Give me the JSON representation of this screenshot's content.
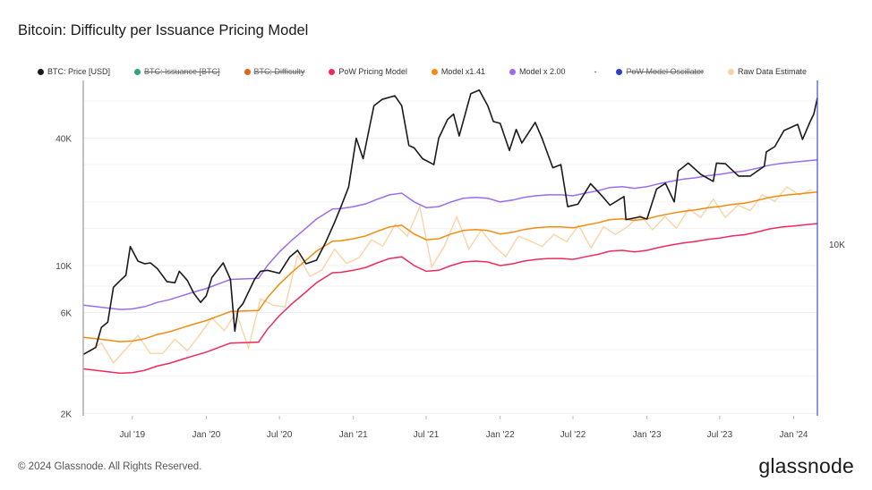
{
  "chart_data": {
    "type": "line",
    "title": "Bitcoin: Difficulty per Issuance Pricing Model",
    "y_scale": "log",
    "ylim": [
      1950,
      75000
    ],
    "xlim": [
      "2019-03-01",
      "2024-02-29"
    ],
    "y_ticks": [
      {
        "value": 2000,
        "label": "2K"
      },
      {
        "value": 6000,
        "label": "6K"
      },
      {
        "value": 10000,
        "label": "10K"
      },
      {
        "value": 40000,
        "label": "40K"
      }
    ],
    "y2_ticks": [
      {
        "label": "10K"
      }
    ],
    "x_ticks": [
      {
        "date": "2019-07-01",
        "label": "Jul '19"
      },
      {
        "date": "2020-01-01",
        "label": "Jan '20"
      },
      {
        "date": "2020-07-01",
        "label": "Jul '20"
      },
      {
        "date": "2021-01-01",
        "label": "Jan '21"
      },
      {
        "date": "2021-07-01",
        "label": "Jul '21"
      },
      {
        "date": "2022-01-01",
        "label": "Jan '22"
      },
      {
        "date": "2022-07-01",
        "label": "Jul '22"
      },
      {
        "date": "2023-01-01",
        "label": "Jan '23"
      },
      {
        "date": "2023-07-01",
        "label": "Jul '23"
      },
      {
        "date": "2024-01-01",
        "label": "Jan '24"
      }
    ],
    "legend": [
      {
        "label": "BTC: Price [USD]",
        "color": "#1a1a1a",
        "visible": true
      },
      {
        "label": "BTC: Issuance [BTC]",
        "color": "#2fa37a",
        "visible": false
      },
      {
        "label": "BTC: Difficulty",
        "color": "#e0651c",
        "visible": false
      },
      {
        "label": "PoW Pricing Model",
        "color": "#ee2a5c",
        "visible": true
      },
      {
        "label": "Model x1.41",
        "color": "#f28c0f",
        "visible": true
      },
      {
        "label": "Model x 2.00",
        "color": "#9b6cf0",
        "visible": true
      },
      {
        "label": "-",
        "color": "",
        "visible": true
      },
      {
        "label": "PoW Model Oscillator",
        "color": "#2b3fcf",
        "visible": false
      },
      {
        "label": "Raw Data Estimate",
        "color": "#fbd3a6",
        "visible": true
      }
    ],
    "series": {
      "price": {
        "name": "BTC: Price [USD]",
        "color": "#1a1a1a",
        "points": [
          [
            "2019-03-01",
            3800
          ],
          [
            "2019-04-01",
            4100
          ],
          [
            "2019-04-15",
            5100
          ],
          [
            "2019-05-01",
            5400
          ],
          [
            "2019-05-15",
            7900
          ],
          [
            "2019-06-01",
            8500
          ],
          [
            "2019-06-15",
            9000
          ],
          [
            "2019-06-26",
            12300
          ],
          [
            "2019-07-15",
            10500
          ],
          [
            "2019-08-01",
            10200
          ],
          [
            "2019-08-15",
            10300
          ],
          [
            "2019-09-01",
            9700
          ],
          [
            "2019-09-25",
            8400
          ],
          [
            "2019-10-15",
            8300
          ],
          [
            "2019-10-26",
            9400
          ],
          [
            "2019-11-15",
            8500
          ],
          [
            "2019-12-01",
            7400
          ],
          [
            "2019-12-18",
            6700
          ],
          [
            "2020-01-01",
            7200
          ],
          [
            "2020-01-15",
            8800
          ],
          [
            "2020-02-12",
            10300
          ],
          [
            "2020-03-01",
            8600
          ],
          [
            "2020-03-12",
            4900
          ],
          [
            "2020-03-20",
            6200
          ],
          [
            "2020-04-01",
            6600
          ],
          [
            "2020-04-30",
            8600
          ],
          [
            "2020-05-15",
            9400
          ],
          [
            "2020-06-01",
            9500
          ],
          [
            "2020-07-01",
            9200
          ],
          [
            "2020-07-27",
            11000
          ],
          [
            "2020-08-15",
            11800
          ],
          [
            "2020-09-05",
            10200
          ],
          [
            "2020-10-01",
            10600
          ],
          [
            "2020-10-25",
            13000
          ],
          [
            "2020-11-15",
            16000
          ],
          [
            "2020-12-01",
            19000
          ],
          [
            "2020-12-20",
            23500
          ],
          [
            "2021-01-08",
            40000
          ],
          [
            "2021-01-25",
            32000
          ],
          [
            "2021-02-10",
            45000
          ],
          [
            "2021-02-21",
            57000
          ],
          [
            "2021-03-13",
            61000
          ],
          [
            "2021-04-14",
            63500
          ],
          [
            "2021-05-01",
            57000
          ],
          [
            "2021-05-19",
            37000
          ],
          [
            "2021-06-01",
            36000
          ],
          [
            "2021-06-22",
            32000
          ],
          [
            "2021-07-20",
            30000
          ],
          [
            "2021-08-01",
            40000
          ],
          [
            "2021-08-23",
            49000
          ],
          [
            "2021-09-07",
            52000
          ],
          [
            "2021-09-21",
            41000
          ],
          [
            "2021-10-20",
            65000
          ],
          [
            "2021-11-10",
            67500
          ],
          [
            "2021-12-01",
            57000
          ],
          [
            "2021-12-15",
            48000
          ],
          [
            "2022-01-01",
            47000
          ],
          [
            "2022-01-24",
            35000
          ],
          [
            "2022-02-10",
            44000
          ],
          [
            "2022-02-24",
            38000
          ],
          [
            "2022-03-29",
            47500
          ],
          [
            "2022-04-15",
            40000
          ],
          [
            "2022-05-12",
            29000
          ],
          [
            "2022-06-01",
            30000
          ],
          [
            "2022-06-18",
            19000
          ],
          [
            "2022-07-13",
            19500
          ],
          [
            "2022-08-14",
            24400
          ],
          [
            "2022-09-10",
            21500
          ],
          [
            "2022-10-01",
            19300
          ],
          [
            "2022-11-05",
            21200
          ],
          [
            "2022-11-10",
            16500
          ],
          [
            "2022-12-15",
            17000
          ],
          [
            "2023-01-01",
            16600
          ],
          [
            "2023-01-25",
            23000
          ],
          [
            "2023-02-16",
            24500
          ],
          [
            "2023-03-10",
            20000
          ],
          [
            "2023-03-20",
            28000
          ],
          [
            "2023-04-14",
            30500
          ],
          [
            "2023-05-15",
            27000
          ],
          [
            "2023-06-15",
            25000
          ],
          [
            "2023-06-23",
            30500
          ],
          [
            "2023-07-15",
            30300
          ],
          [
            "2023-08-17",
            26500
          ],
          [
            "2023-09-15",
            26500
          ],
          [
            "2023-10-20",
            29500
          ],
          [
            "2023-10-25",
            34500
          ],
          [
            "2023-11-15",
            36500
          ],
          [
            "2023-12-08",
            43500
          ],
          [
            "2024-01-11",
            46500
          ],
          [
            "2024-01-23",
            39500
          ],
          [
            "2024-02-10",
            47500
          ],
          [
            "2024-02-20",
            52000
          ],
          [
            "2024-02-29",
            62000
          ]
        ]
      },
      "pow_model": {
        "name": "PoW Pricing Model",
        "color": "#ee2a5c",
        "points": [
          [
            "2019-03-01",
            3250
          ],
          [
            "2019-04-01",
            3200
          ],
          [
            "2019-05-01",
            3150
          ],
          [
            "2019-06-01",
            3100
          ],
          [
            "2019-07-01",
            3120
          ],
          [
            "2019-08-01",
            3200
          ],
          [
            "2019-09-01",
            3350
          ],
          [
            "2019-10-01",
            3450
          ],
          [
            "2019-11-01",
            3600
          ],
          [
            "2019-12-01",
            3750
          ],
          [
            "2020-01-01",
            3900
          ],
          [
            "2020-02-01",
            4100
          ],
          [
            "2020-03-01",
            4300
          ],
          [
            "2020-05-10",
            4350
          ],
          [
            "2020-06-01",
            5000
          ],
          [
            "2020-07-01",
            5800
          ],
          [
            "2020-08-01",
            6600
          ],
          [
            "2020-09-01",
            7400
          ],
          [
            "2020-10-01",
            8300
          ],
          [
            "2020-11-10",
            9250
          ],
          [
            "2020-12-01",
            9300
          ],
          [
            "2021-01-01",
            9500
          ],
          [
            "2021-02-01",
            9800
          ],
          [
            "2021-03-01",
            10300
          ],
          [
            "2021-04-01",
            10800
          ],
          [
            "2021-05-01",
            11000
          ],
          [
            "2021-06-01",
            10000
          ],
          [
            "2021-07-01",
            9400
          ],
          [
            "2021-08-01",
            9500
          ],
          [
            "2021-09-01",
            10000
          ],
          [
            "2021-10-01",
            10400
          ],
          [
            "2021-11-01",
            10500
          ],
          [
            "2021-12-01",
            10400
          ],
          [
            "2022-01-01",
            10000
          ],
          [
            "2022-02-01",
            10200
          ],
          [
            "2022-03-01",
            10500
          ],
          [
            "2022-04-01",
            10700
          ],
          [
            "2022-05-01",
            10800
          ],
          [
            "2022-06-01",
            10800
          ],
          [
            "2022-07-01",
            10700
          ],
          [
            "2022-08-01",
            11000
          ],
          [
            "2022-09-01",
            11300
          ],
          [
            "2022-10-01",
            11700
          ],
          [
            "2022-11-01",
            11800
          ],
          [
            "2022-12-01",
            11600
          ],
          [
            "2023-01-01",
            11800
          ],
          [
            "2023-02-01",
            12200
          ],
          [
            "2023-03-01",
            12500
          ],
          [
            "2023-04-01",
            12800
          ],
          [
            "2023-05-01",
            13000
          ],
          [
            "2023-06-01",
            13300
          ],
          [
            "2023-07-01",
            13500
          ],
          [
            "2023-08-01",
            13800
          ],
          [
            "2023-09-01",
            14000
          ],
          [
            "2023-10-01",
            14400
          ],
          [
            "2023-11-01",
            14900
          ],
          [
            "2023-12-01",
            15200
          ],
          [
            "2024-01-01",
            15400
          ],
          [
            "2024-02-29",
            15800
          ]
        ]
      },
      "model_141": {
        "name": "Model x1.41",
        "color": "#f28c0f",
        "multiplier": 1.41
      },
      "model_200": {
        "name": "Model x 2.00",
        "color": "#9b6cf0",
        "multiplier": 2.0
      },
      "raw_estimate": {
        "name": "Raw Data Estimate",
        "color": "#fbd3a6",
        "start": "2019-03-15",
        "step_months": 1,
        "values": [
          3900,
          4320,
          3465,
          4030,
          4680,
          3840,
          3850,
          4485,
          3960,
          4690,
          5655,
          4920,
          6020,
          4085,
          6960,
          6500,
          6380,
          11220,
          8880,
          9545,
          11960,
          10230,
          10925,
          13230,
          12360,
          15660,
          13750,
          19000,
          9870,
          12350,
          17000,
          11960,
          14700,
          12480,
          11000,
          13770,
          13125,
          12305,
          14040,
          12960,
          15515,
          12100,
          15255,
          14040,
          15340,
          17400,
          14750,
          17080,
          15000,
          18560,
          16900,
          20615,
          16875,
          19320,
          18200,
          21600,
          20115,
          23560,
          21560,
          22910
        ]
      }
    }
  },
  "footer": {
    "copyright": "© 2024 Glassnode. All Rights Reserved.",
    "logo": "glassnode"
  }
}
